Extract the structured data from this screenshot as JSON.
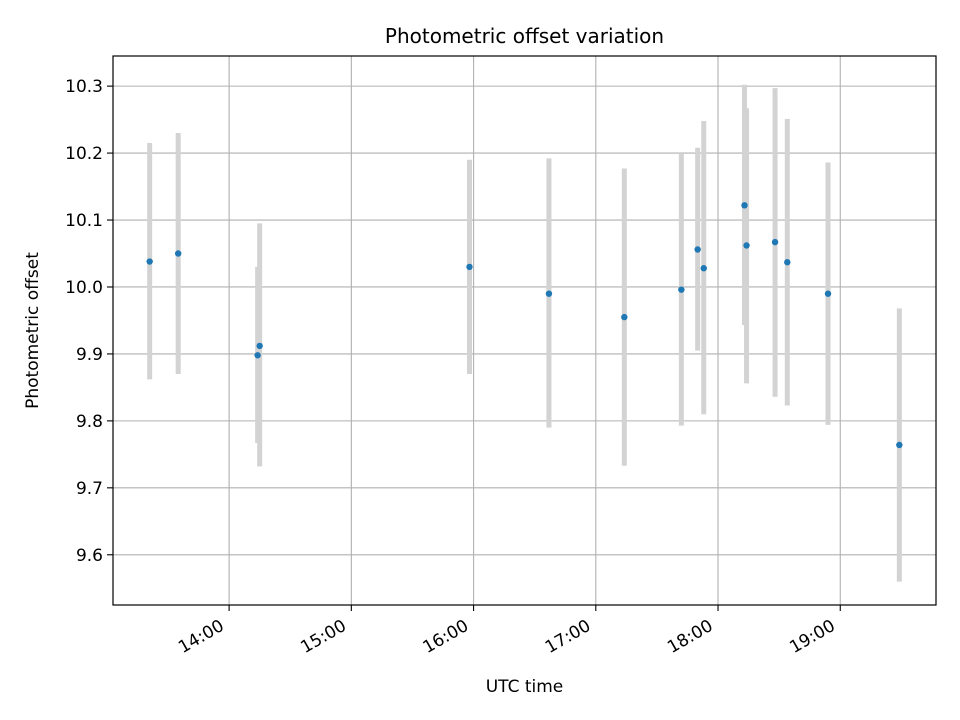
{
  "chart_data": {
    "type": "scatter",
    "title": "Photometric offset variation",
    "xlabel": "UTC time",
    "ylabel": "Photometric offset",
    "grid": true,
    "legend": "none",
    "colors": {
      "marker": "#1f77b4",
      "errorbar": "#d3d3d3",
      "grid": "#b0b0b0"
    },
    "x_ticks": [
      "14:00",
      "15:00",
      "16:00",
      "17:00",
      "18:00",
      "19:00"
    ],
    "y_ticks": [
      "9.6",
      "9.7",
      "9.8",
      "9.9",
      "10.0",
      "10.1",
      "10.2",
      "10.3"
    ],
    "xlim": [
      "13:03",
      "19:47"
    ],
    "ylim": [
      9.525,
      10.345
    ],
    "points": [
      {
        "x": "13:21",
        "y": 10.038,
        "lo": 9.862,
        "hi": 10.215
      },
      {
        "x": "13:35",
        "y": 10.05,
        "lo": 9.87,
        "hi": 10.23
      },
      {
        "x": "14:14",
        "y": 9.898,
        "lo": 9.767,
        "hi": 10.03
      },
      {
        "x": "14:15",
        "y": 9.912,
        "lo": 9.732,
        "hi": 10.095
      },
      {
        "x": "15:58",
        "y": 10.03,
        "lo": 9.87,
        "hi": 10.19
      },
      {
        "x": "16:37",
        "y": 9.99,
        "lo": 9.79,
        "hi": 10.192
      },
      {
        "x": "17:14",
        "y": 9.955,
        "lo": 9.733,
        "hi": 10.177
      },
      {
        "x": "17:42",
        "y": 9.996,
        "lo": 9.793,
        "hi": 10.2
      },
      {
        "x": "17:50",
        "y": 10.056,
        "lo": 9.905,
        "hi": 10.208
      },
      {
        "x": "17:53",
        "y": 10.028,
        "lo": 9.81,
        "hi": 10.248
      },
      {
        "x": "18:13",
        "y": 10.122,
        "lo": 9.943,
        "hi": 10.302
      },
      {
        "x": "18:14",
        "y": 10.062,
        "lo": 9.856,
        "hi": 10.267
      },
      {
        "x": "18:28",
        "y": 10.067,
        "lo": 9.836,
        "hi": 10.297
      },
      {
        "x": "18:34",
        "y": 10.037,
        "lo": 9.823,
        "hi": 10.251
      },
      {
        "x": "18:54",
        "y": 9.99,
        "lo": 9.794,
        "hi": 10.186
      },
      {
        "x": "19:29",
        "y": 9.764,
        "lo": 9.56,
        "hi": 9.968
      }
    ]
  }
}
